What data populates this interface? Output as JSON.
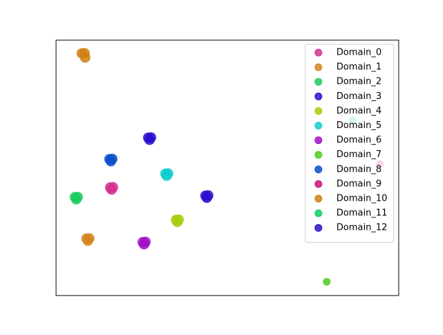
{
  "chart_data": {
    "type": "scatter",
    "xlim": [
      0,
      100
    ],
    "ylim": [
      0,
      100
    ],
    "legend": "upper right",
    "series": [
      {
        "name": "Domain_0",
        "color": "#d6308e",
        "x": [
          15.8,
          16.6,
          16.2
        ],
        "y": [
          42.3,
          42.4,
          41.5
        ]
      },
      {
        "name": "Domain_1",
        "color": "#d4851f",
        "x": [
          8.9,
          9.7,
          9.3
        ],
        "y": [
          22.3,
          22.4,
          21.5
        ]
      },
      {
        "name": "Domain_2",
        "color": "#1ccc5c",
        "x": [
          5.5,
          6.3,
          5.9
        ],
        "y": [
          38.5,
          38.6,
          37.7
        ]
      },
      {
        "name": "Domain_3",
        "color": "#2a10cf",
        "x": [
          26.9,
          27.7,
          27.3
        ],
        "y": [
          61.8,
          61.9,
          61.0
        ]
      },
      {
        "name": "Domain_4",
        "color": "#a8cc10",
        "x": [
          35.0,
          35.8,
          35.4
        ],
        "y": [
          29.6,
          29.7,
          28.8
        ]
      },
      {
        "name": "Domain_5",
        "color": "#10cccc",
        "x": [
          31.9,
          32.7,
          32.3
        ],
        "y": [
          47.7,
          47.8,
          46.9
        ]
      },
      {
        "name": "Domain_6",
        "color": "#a010c8",
        "x": [
          25.3,
          26.1,
          25.7
        ],
        "y": [
          20.9,
          21.0,
          20.1
        ]
      },
      {
        "name": "Domain_7",
        "color": "#4ccc20",
        "x": [
          79.0
        ],
        "y": [
          5.4
        ]
      },
      {
        "name": "Domain_8",
        "color": "#0a50cc",
        "x": [
          15.6,
          16.4,
          16.0
        ],
        "y": [
          53.4,
          53.5,
          52.6
        ]
      },
      {
        "name": "Domain_9",
        "color": "#cc1080",
        "x": [
          94.5
        ],
        "y": [
          51.5
        ]
      },
      {
        "name": "Domain_10",
        "color": "#cc8010",
        "x": [
          7.5,
          8.3,
          8.5
        ],
        "y": [
          94.8,
          94.9,
          93.2
        ]
      },
      {
        "name": "Domain_11",
        "color": "#10cc60",
        "x": [
          86.5
        ],
        "y": [
          68.6
        ]
      },
      {
        "name": "Domain_12",
        "color": "#2a10cc",
        "x": [
          43.6,
          44.4,
          44.0
        ],
        "y": [
          39.1,
          39.2,
          38.3
        ]
      }
    ]
  }
}
